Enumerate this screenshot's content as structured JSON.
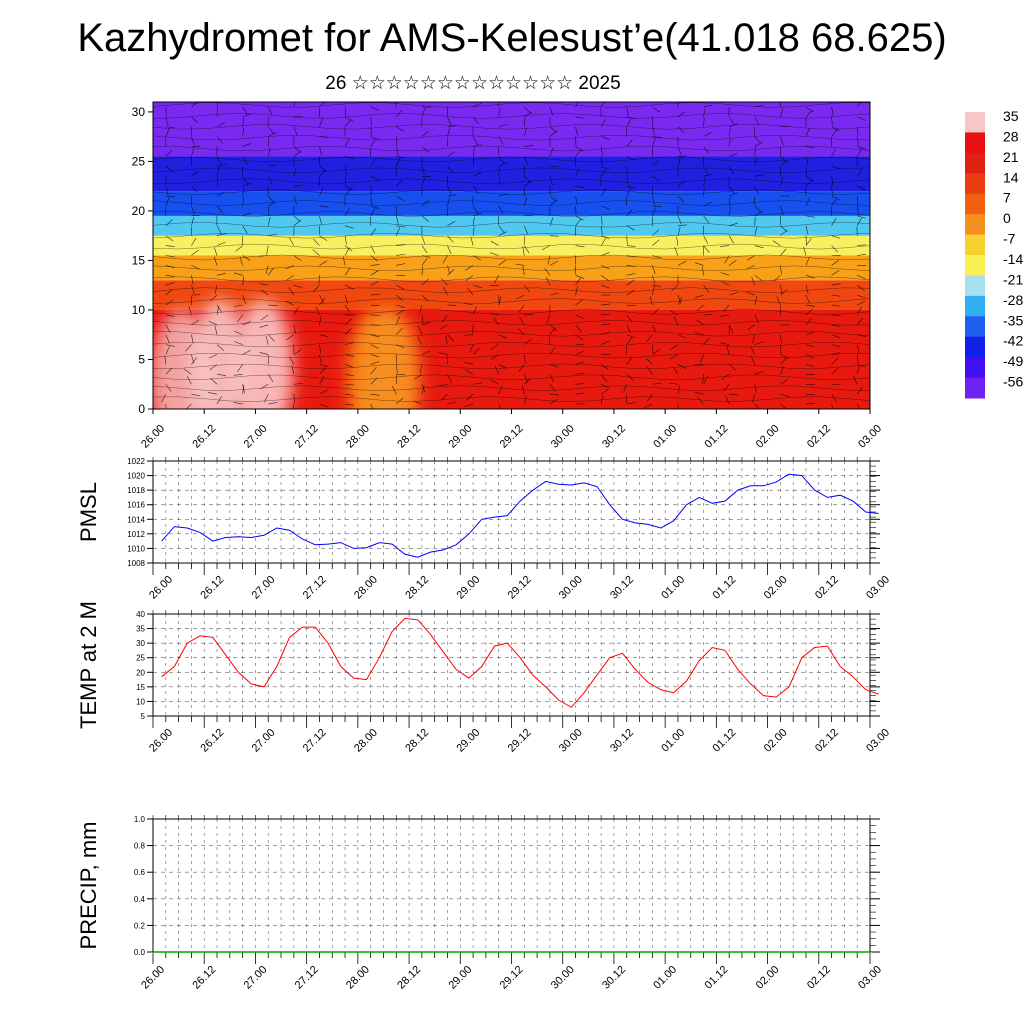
{
  "title": "Kazhydromet for AMS-Kelesust’e(41.018 68.625)",
  "subtitle": "26 ☆☆☆☆☆☆☆☆☆☆☆☆☆ 2025",
  "time_ticks": [
    "26.00",
    "26.12",
    "27.00",
    "27.12",
    "28.00",
    "28.12",
    "29.00",
    "29.12",
    "30.00",
    "30.12",
    "01.00",
    "01.12",
    "02.00",
    "02.12",
    "03.00"
  ],
  "chart_data": [
    {
      "type": "heatmap",
      "name": "cross-section",
      "yticks": [
        0,
        5,
        10,
        15,
        20,
        25,
        30
      ],
      "ylim": [
        0,
        31
      ],
      "colorbar": {
        "labels": [
          "35",
          "28",
          "21",
          "14",
          "7",
          "0",
          "-7",
          "-14",
          "-21",
          "-28",
          "-35",
          "-42",
          "-49",
          "-56"
        ],
        "colors": [
          "#f4c8c8",
          "#e81010",
          "#e02010",
          "#e83c10",
          "#f06010",
          "#f89020",
          "#f8d030",
          "#f8f050",
          "#a8e0f0",
          "#30b0f0",
          "#2060f0",
          "#1020e8",
          "#4010f0",
          "#7020f0"
        ]
      },
      "layers": [
        {
          "from": 0,
          "to": 10,
          "color": "#e81a10"
        },
        {
          "from": 10,
          "to": 13,
          "color": "#f04810"
        },
        {
          "from": 13,
          "to": 15.5,
          "color": "#f8a018"
        },
        {
          "from": 15.5,
          "to": 17.5,
          "color": "#f8f060"
        },
        {
          "from": 17.5,
          "to": 19.5,
          "color": "#50c8f0"
        },
        {
          "from": 19.5,
          "to": 22,
          "color": "#1850f0"
        },
        {
          "from": 22,
          "to": 25.5,
          "color": "#2020e0"
        },
        {
          "from": 25.5,
          "to": 31,
          "color": "#7a2af0"
        }
      ],
      "warm_cores": [
        {
          "t": 2.2,
          "z": 3,
          "color": "#f6b0b0"
        },
        {
          "t": 5.2,
          "z": 4,
          "color": "#f8c8c8"
        },
        {
          "t": 8.6,
          "z": 4,
          "color": "#fac8c8"
        },
        {
          "t": 17.5,
          "z": 3,
          "color": "#f88a18"
        },
        {
          "t": 18.5,
          "z": 3,
          "color": "#f89020"
        }
      ]
    },
    {
      "type": "line",
      "ylabel": "PMSL",
      "ylim": [
        1008,
        1022
      ],
      "yticks": [
        "1008",
        "1010",
        "1012",
        "1014",
        "1016",
        "1018",
        "1020",
        "1022"
      ],
      "color": "#0000ff",
      "x": [
        0,
        1,
        2,
        3,
        4,
        5,
        6,
        7,
        8,
        9,
        10,
        11,
        12,
        13,
        14,
        15,
        16,
        17,
        18,
        19,
        20,
        21,
        22,
        23,
        24,
        25,
        26,
        27,
        28,
        29,
        30,
        31,
        32,
        33,
        34,
        35,
        36,
        37,
        38,
        39,
        40,
        41,
        42,
        43,
        44,
        45,
        46,
        47,
        48,
        49,
        50,
        51,
        52,
        53,
        54,
        55,
        56
      ],
      "values": [
        1011,
        1013,
        1012.8,
        1012.2,
        1011,
        1011.5,
        1011.6,
        1011.5,
        1011.8,
        1012.8,
        1012.5,
        1011.3,
        1010.5,
        1010.6,
        1010.8,
        1010,
        1010.1,
        1010.8,
        1010.6,
        1009.2,
        1008.8,
        1009.5,
        1009.8,
        1010.5,
        1012,
        1014,
        1014.3,
        1014.5,
        1016.5,
        1018,
        1019.2,
        1018.8,
        1018.7,
        1019,
        1018.5,
        1016,
        1014,
        1013.5,
        1013.3,
        1012.8,
        1013.8,
        1016,
        1017,
        1016.2,
        1016.5,
        1018,
        1018.6,
        1018.6,
        1019.1,
        1020.2,
        1020,
        1018,
        1017,
        1017.3,
        1016.5,
        1015,
        1014.8
      ]
    },
    {
      "type": "line",
      "ylabel": "TEMP at 2 M",
      "ylim": [
        5,
        40
      ],
      "yticks": [
        "5",
        "10",
        "15",
        "20",
        "25",
        "30",
        "35",
        "40"
      ],
      "color": "#ff0000",
      "x": [
        0,
        1,
        2,
        3,
        4,
        5,
        6,
        7,
        8,
        9,
        10,
        11,
        12,
        13,
        14,
        15,
        16,
        17,
        18,
        19,
        20,
        21,
        22,
        23,
        24,
        25,
        26,
        27,
        28,
        29,
        30,
        31,
        32,
        33,
        34,
        35,
        36,
        37,
        38,
        39,
        40,
        41,
        42,
        43,
        44,
        45,
        46,
        47,
        48,
        49,
        50,
        51,
        52,
        53,
        54,
        55,
        56
      ],
      "values": [
        18.5,
        22,
        30,
        32.5,
        32,
        26,
        20,
        16,
        15,
        22,
        32,
        35.5,
        35.5,
        30,
        22,
        18,
        17.5,
        25,
        34,
        38.5,
        38,
        33,
        27,
        21,
        18,
        22,
        29,
        30,
        25,
        19,
        15,
        10.5,
        8,
        13,
        19,
        25,
        26.5,
        21,
        16.5,
        14,
        13,
        17,
        24,
        28.5,
        27.5,
        21,
        16,
        12,
        11.5,
        15,
        25,
        28.5,
        29,
        22,
        18.5,
        14,
        12.5
      ]
    },
    {
      "type": "bar",
      "ylabel": "PRECIP, mm",
      "ylim": [
        0,
        1
      ],
      "yticks": [
        "0.0",
        "0.2",
        "0.4",
        "0.6",
        "0.8",
        "1.0"
      ],
      "color": "#00aa00",
      "values": [
        0,
        0,
        0,
        0,
        0,
        0,
        0,
        0,
        0,
        0,
        0,
        0,
        0,
        0,
        0,
        0,
        0,
        0,
        0,
        0,
        0,
        0,
        0,
        0,
        0,
        0,
        0,
        0,
        0,
        0,
        0,
        0,
        0,
        0,
        0,
        0,
        0,
        0,
        0,
        0,
        0,
        0,
        0,
        0,
        0,
        0,
        0,
        0,
        0,
        0,
        0,
        0,
        0,
        0,
        0,
        0,
        0
      ]
    }
  ]
}
